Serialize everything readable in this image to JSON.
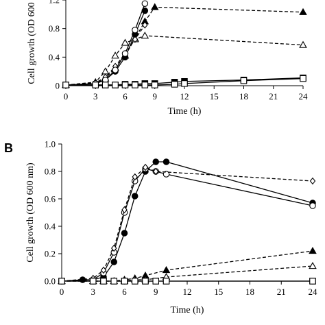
{
  "chart_data": [
    {
      "panel": "",
      "type": "line",
      "xlabel": "Time (h)",
      "ylabel": "Cell growth (OD 600 nm)",
      "xlim": [
        0,
        24
      ],
      "ylim": [
        0,
        1.2
      ],
      "xticks": [
        "0",
        "3",
        "6",
        "9",
        "12",
        "15",
        "18",
        "21",
        "24"
      ],
      "yticks": [
        "0",
        "0.4",
        "0.8",
        "1.2"
      ],
      "grid": false,
      "legend": "none",
      "series": [
        {
          "marker": "filled-triangle",
          "dash": true,
          "x": [
            0,
            3,
            4,
            5,
            6,
            7,
            8,
            9,
            24
          ],
          "y": [
            0.01,
            0.03,
            0.1,
            0.25,
            0.42,
            0.66,
            0.9,
            1.1,
            1.03
          ]
        },
        {
          "marker": "open-triangle",
          "dash": true,
          "x": [
            0,
            3,
            4,
            5,
            6,
            7,
            8,
            24
          ],
          "y": [
            0.01,
            0.05,
            0.2,
            0.42,
            0.6,
            0.65,
            0.7,
            0.57
          ]
        },
        {
          "marker": "open-diamond",
          "dash": true,
          "x": [
            0,
            3,
            4,
            5,
            6,
            7,
            8
          ],
          "y": [
            0.01,
            0.04,
            0.12,
            0.27,
            0.45,
            0.65,
            0.85
          ]
        },
        {
          "marker": "filled-circle",
          "dash": false,
          "x": [
            0,
            3,
            4,
            5,
            6,
            7,
            8
          ],
          "y": [
            0.01,
            0.03,
            0.08,
            0.2,
            0.4,
            0.72,
            1.05
          ]
        },
        {
          "marker": "open-circle",
          "dash": false,
          "x": [
            0,
            3,
            4,
            5,
            6,
            7,
            8
          ],
          "y": [
            0.01,
            0.03,
            0.08,
            0.22,
            0.45,
            0.78,
            1.15
          ]
        },
        {
          "marker": "filled-square",
          "dash": false,
          "x": [
            0,
            3,
            4,
            5,
            6,
            7,
            8,
            9,
            11,
            12,
            18,
            24
          ],
          "y": [
            0.01,
            0.01,
            0.01,
            0.01,
            0.02,
            0.02,
            0.03,
            0.03,
            0.05,
            0.06,
            0.08,
            0.11
          ]
        },
        {
          "marker": "open-square",
          "dash": false,
          "x": [
            0,
            3,
            4,
            5,
            6,
            7,
            8,
            9,
            11,
            12,
            18,
            24
          ],
          "y": [
            0.01,
            0.01,
            0.01,
            0.01,
            0.01,
            0.01,
            0.01,
            0.01,
            0.02,
            0.03,
            0.07,
            0.1
          ]
        }
      ]
    },
    {
      "panel": "B",
      "type": "line",
      "xlabel": "Time (h)",
      "ylabel": "Cell growth (OD 600 nm)",
      "xlim": [
        0,
        24
      ],
      "ylim": [
        0,
        1.0
      ],
      "xticks": [
        "0",
        "3",
        "6",
        "9",
        "12",
        "15",
        "18",
        "21",
        "24"
      ],
      "yticks": [
        "0.0",
        "0.2",
        "0.4",
        "0.6",
        "0.8",
        "1.0"
      ],
      "grid": false,
      "legend": "none",
      "series": [
        {
          "marker": "filled-circle",
          "dash": false,
          "x": [
            0,
            2,
            3,
            4,
            5,
            6,
            7,
            8,
            9,
            10,
            24
          ],
          "y": [
            0.0,
            0.01,
            0.01,
            0.03,
            0.14,
            0.35,
            0.62,
            0.8,
            0.87,
            0.87,
            0.57
          ]
        },
        {
          "marker": "open-circle",
          "dash": false,
          "x": [
            0,
            3,
            4,
            5,
            6,
            7,
            8,
            9,
            10,
            24
          ],
          "y": [
            0.0,
            0.01,
            0.06,
            0.21,
            0.5,
            0.73,
            0.82,
            0.8,
            0.78,
            0.55
          ]
        },
        {
          "marker": "open-diamond",
          "dash": true,
          "x": [
            0,
            3,
            4,
            5,
            6,
            7,
            8,
            9,
            24
          ],
          "y": [
            0.0,
            0.02,
            0.08,
            0.24,
            0.52,
            0.76,
            0.83,
            0.8,
            0.73
          ]
        },
        {
          "marker": "filled-triangle",
          "dash": true,
          "x": [
            0,
            3,
            4,
            5,
            6,
            7,
            8,
            10,
            24
          ],
          "y": [
            0.0,
            0.0,
            0.0,
            0.0,
            0.01,
            0.02,
            0.04,
            0.08,
            0.22
          ]
        },
        {
          "marker": "open-triangle",
          "dash": true,
          "x": [
            0,
            3,
            4,
            5,
            6,
            7,
            8,
            10,
            24
          ],
          "y": [
            0.0,
            0.0,
            0.0,
            0.0,
            0.0,
            0.01,
            0.01,
            0.03,
            0.11
          ]
        },
        {
          "marker": "filled-square",
          "dash": false,
          "x": [
            0,
            3,
            4,
            5,
            6,
            7,
            8,
            9,
            10,
            24
          ],
          "y": [
            0.0,
            0.0,
            0.0,
            0.0,
            0.0,
            0.0,
            0.0,
            0.0,
            0.0,
            0.0
          ]
        },
        {
          "marker": "open-square",
          "dash": false,
          "x": [
            0,
            3,
            4,
            5,
            6,
            7,
            8,
            9,
            10,
            24
          ],
          "y": [
            0.0,
            0.0,
            0.0,
            0.0,
            0.0,
            0.0,
            0.0,
            0.0,
            0.0,
            0.0
          ]
        }
      ]
    }
  ]
}
